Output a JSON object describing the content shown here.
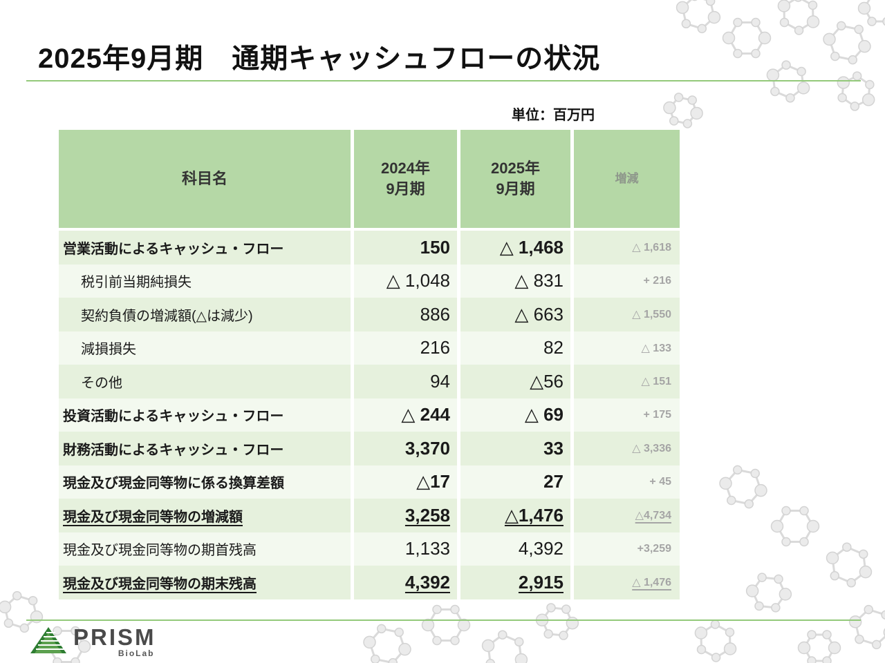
{
  "slide": {
    "title": "2025年9月期　通期キャッシュフローの状況",
    "unit_label": "単位：百万円"
  },
  "table": {
    "headers": [
      "科目名",
      "2024年\n9月期",
      "2025年\n9月期",
      "増減"
    ],
    "rows": [
      {
        "label": "営業活動によるキャッシュ・フロー",
        "v2024": "150",
        "v2025": "△ 1,468",
        "diff": "△ 1,618"
      },
      {
        "label": "税引前当期純損失",
        "v2024": "△ 1,048",
        "v2025": "△ 831",
        "diff": "+ 216"
      },
      {
        "label": "契約負債の増減額(△は減少)",
        "v2024": "886",
        "v2025": "△ 663",
        "diff": "△ 1,550"
      },
      {
        "label": "減損損失",
        "v2024": "216",
        "v2025": "82",
        "diff": "△ 133"
      },
      {
        "label": "その他",
        "v2024": "94",
        "v2025": "△56",
        "diff": "△ 151"
      },
      {
        "label": "投資活動によるキャッシュ・フロー",
        "v2024": "△ 244",
        "v2025": "△ 69",
        "diff": "+ 175"
      },
      {
        "label": "財務活動によるキャッシュ・フロー",
        "v2024": "3,370",
        "v2025": "33",
        "diff": "△ 3,336"
      },
      {
        "label": "現金及び現金同等物に係る換算差額",
        "v2024": "△17",
        "v2025": "27",
        "diff": "+ 45"
      },
      {
        "label": "現金及び現金同等物の増減額",
        "v2024": "3,258",
        "v2025": "△1,476",
        "diff": "△4,734"
      },
      {
        "label": "現金及び現金同等物の期首残高",
        "v2024": "1,133",
        "v2025": "4,392",
        "diff": "+3,259"
      },
      {
        "label": "現金及び現金同等物の期末残高",
        "v2024": "4,392",
        "v2025": "2,915",
        "diff": "△ 1,476"
      }
    ]
  },
  "footer": {
    "logo_text": "PRISM",
    "logo_subtext": "BioLab"
  },
  "colors": {
    "header_green": "#b5d8a6",
    "row_green_dark": "#e6f1dd",
    "row_green_light": "#f3f9ef",
    "rule_green": "#93c97a",
    "diff_gray": "#a5a5a5",
    "logo_green": "#2e7d32"
  }
}
